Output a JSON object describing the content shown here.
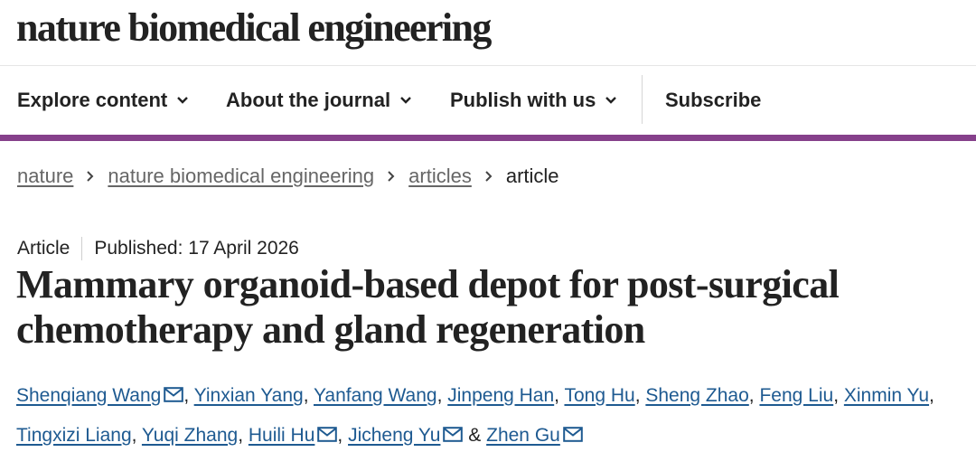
{
  "masthead": {
    "logo_text": "nature biomedical engineering"
  },
  "nav": {
    "explore": "Explore content",
    "about": "About the journal",
    "publish": "Publish with us",
    "subscribe": "Subscribe"
  },
  "breadcrumb": {
    "items": [
      "nature",
      "nature biomedical engineering",
      "articles"
    ],
    "current": "article"
  },
  "article": {
    "type": "Article",
    "published": "Published: 17 April 2026",
    "title": "Mammary organoid-based depot for post-surgical chemotherapy and gland regeneration",
    "authors": [
      "Shenqiang Wang",
      "Yinxian Yang",
      "Yanfang Wang",
      "Jinpeng Han",
      "Tong Hu",
      "Sheng Zhao",
      "Feng Liu",
      "Xinmin Yu",
      "Tingxizi Liang",
      "Yuqi Zhang",
      "Huili Hu",
      "Jicheng Yu",
      "Zhen Gu"
    ],
    "sep_comma": ", ",
    "sep_and": " & "
  },
  "colors": {
    "brand_purple": "#86408b",
    "link_blue": "#1e5a91"
  },
  "icons": {
    "nav_chevron": "chevron-down-icon",
    "breadcrumb_sep": "chevron-right-icon",
    "corresponding": "mail-icon"
  }
}
